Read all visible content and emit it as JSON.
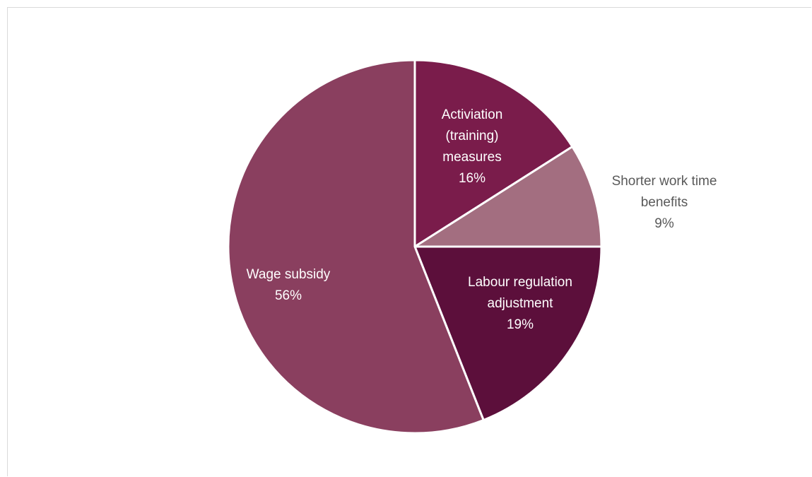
{
  "chart_data": {
    "type": "pie",
    "title": "",
    "start_angle_deg": 0,
    "direction": "clockwise",
    "slices": [
      {
        "name": "Activiation (training) measures",
        "label_lines": [
          "Activiation",
          "(training)",
          "measures"
        ],
        "value": 16,
        "value_label": "16%",
        "color": "#7a1c4b",
        "label_color": "#ffffff"
      },
      {
        "name": "Shorter work time benefits",
        "label_lines": [
          "Shorter work time",
          "benefits"
        ],
        "value": 9,
        "value_label": "9%",
        "color": "#a36e80",
        "label_color": "#595959"
      },
      {
        "name": "Labour regulation adjustment",
        "label_lines": [
          "Labour regulation",
          "adjustment"
        ],
        "value": 19,
        "value_label": "19%",
        "color": "#5c0f3b",
        "label_color": "#ffffff"
      },
      {
        "name": "Wage subsidy",
        "label_lines": [
          "Wage subsidy"
        ],
        "value": 56,
        "value_label": "56%",
        "color": "#8a3f5f",
        "label_color": "#ffffff"
      }
    ],
    "legend": "none",
    "grid": false
  }
}
